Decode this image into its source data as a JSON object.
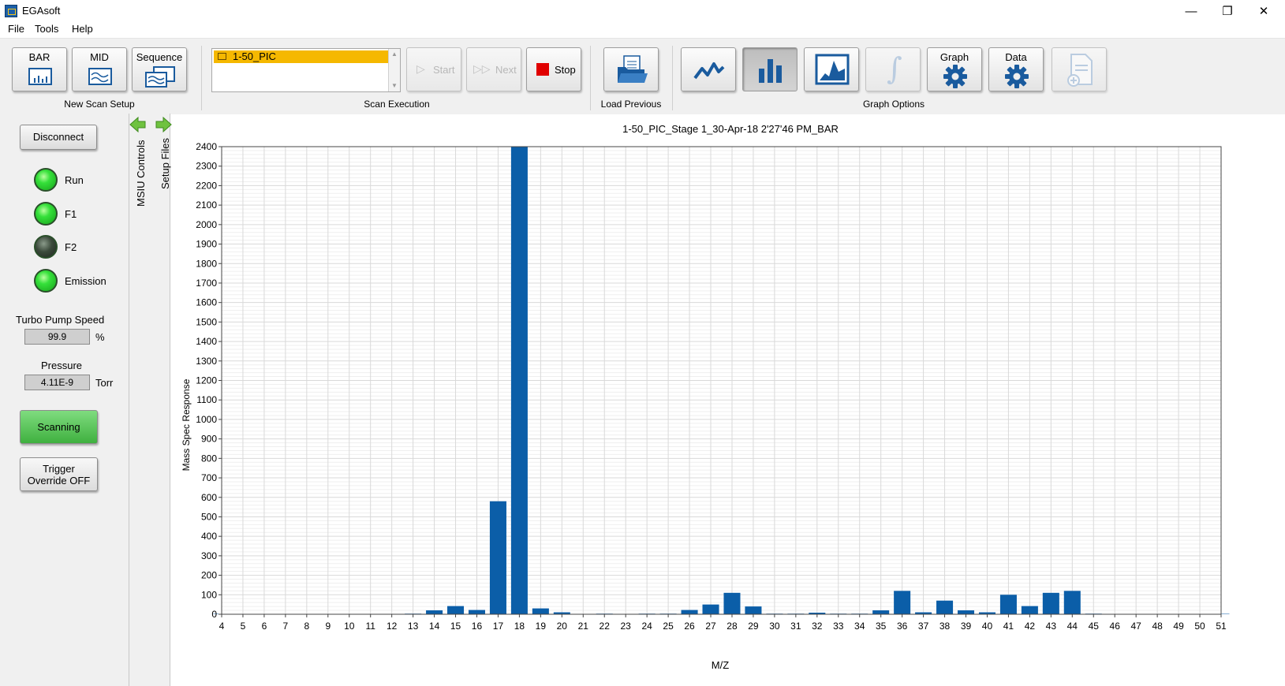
{
  "window": {
    "title": "EGAsoft",
    "minimize_glyph": "—",
    "restore_glyph": "❐",
    "close_glyph": "✕"
  },
  "menu": [
    "File",
    "Tools",
    "Help"
  ],
  "toolbar": {
    "new_scan_setup": {
      "label": "New Scan Setup",
      "buttons": [
        "BAR",
        "MID",
        "Sequence"
      ]
    },
    "scan_execution": {
      "label": "Scan Execution",
      "list_items": [
        "1-50_PIC"
      ],
      "start_label": "Start",
      "next_label": "Next",
      "stop_label": "Stop"
    },
    "load_previous": {
      "label": "Load Previous"
    },
    "graph_options": {
      "label": "Graph Options",
      "graph_label": "Graph",
      "data_label": "Data"
    }
  },
  "left_panel": {
    "disconnect_label": "Disconnect",
    "indicators": [
      {
        "label": "Run",
        "state": "on"
      },
      {
        "label": "F1",
        "state": "on"
      },
      {
        "label": "F2",
        "state": "off"
      },
      {
        "label": "Emission",
        "state": "on"
      }
    ],
    "turbo_pump": {
      "label": "Turbo Pump Speed",
      "value": "99.9",
      "unit": "%"
    },
    "pressure": {
      "label": "Pressure",
      "value": "4.11E-9",
      "unit": "Torr"
    },
    "scanning_label": "Scanning",
    "trigger_label_1": "Trigger",
    "trigger_label_2": "Override OFF",
    "accent_green": "#4cc24c"
  },
  "side_tabs": {
    "msiu_label": "MSIU Controls",
    "setup_label": "Setup Files"
  },
  "chart_data": {
    "type": "bar",
    "title": "1-50_PIC_Stage 1_30-Apr-18 2'27'46 PM_BAR",
    "xlabel": "M/Z",
    "ylabel": "Mass Spec Response",
    "ylim": [
      0,
      2400
    ],
    "ytick_step": 100,
    "xlim": [
      4,
      51
    ],
    "grid": true,
    "bar_color": "#0b5ea8",
    "x": [
      4,
      5,
      6,
      7,
      8,
      9,
      10,
      11,
      12,
      13,
      14,
      15,
      16,
      17,
      18,
      19,
      20,
      21,
      22,
      23,
      24,
      25,
      26,
      27,
      28,
      29,
      30,
      31,
      32,
      33,
      34,
      35,
      36,
      37,
      38,
      39,
      40,
      41,
      42,
      43,
      44,
      45,
      46,
      47,
      48,
      49,
      50,
      51
    ],
    "values": [
      2,
      2,
      2,
      2,
      2,
      2,
      2,
      2,
      2,
      3,
      20,
      42,
      22,
      580,
      2400,
      30,
      10,
      2,
      3,
      2,
      3,
      3,
      22,
      50,
      110,
      40,
      3,
      3,
      8,
      3,
      3,
      20,
      120,
      10,
      70,
      20,
      10,
      100,
      42,
      110,
      120,
      3,
      2,
      2,
      2,
      2,
      2,
      2
    ]
  }
}
